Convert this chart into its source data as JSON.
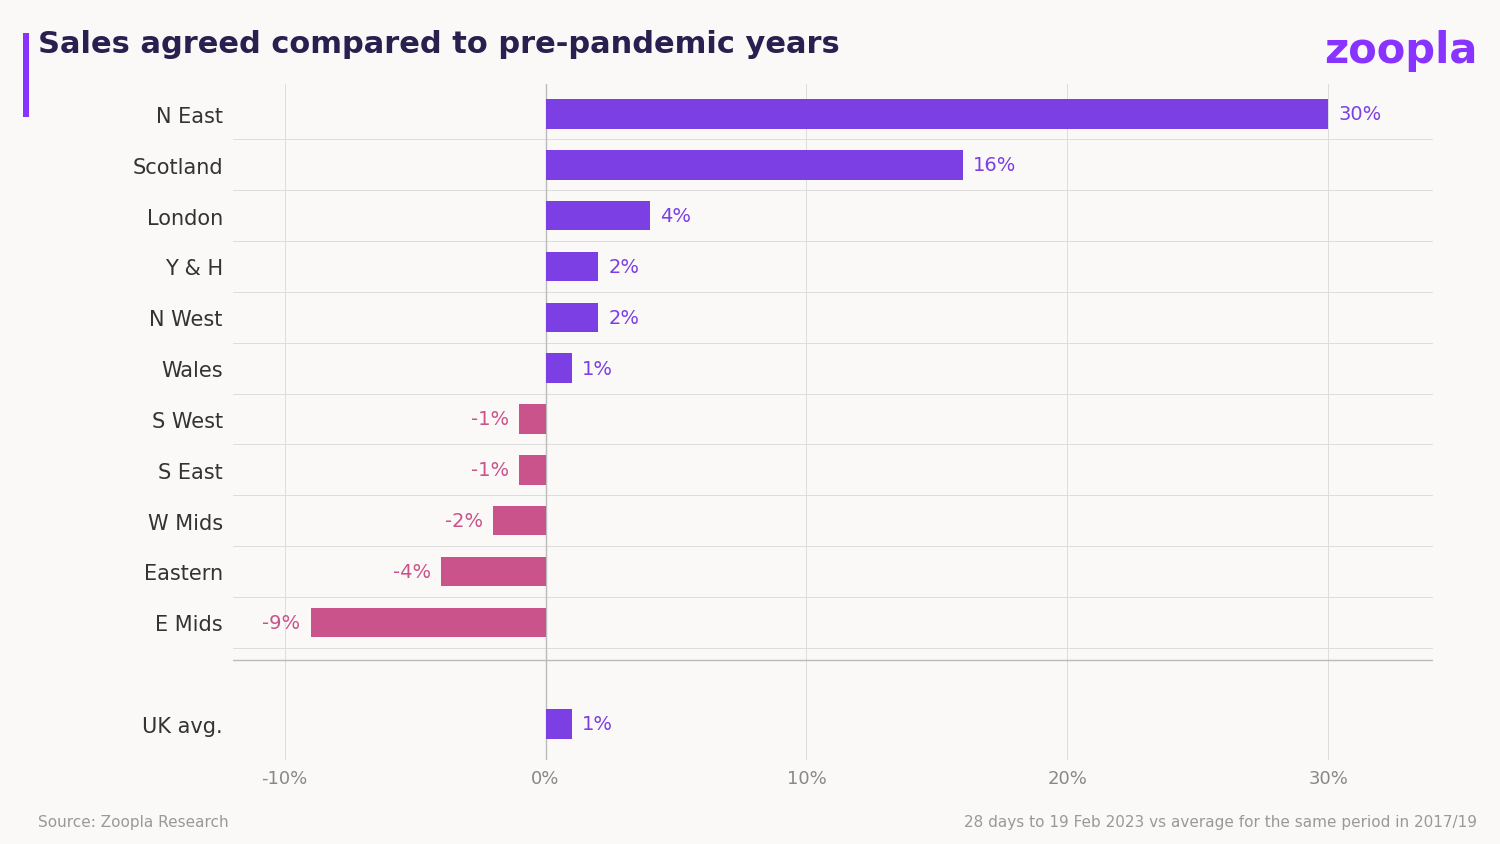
{
  "title": "Sales agreed compared to pre-pandemic years",
  "categories": [
    "N East",
    "Scotland",
    "London",
    "Y & H",
    "N West",
    "Wales",
    "S West",
    "S East",
    "W Mids",
    "Eastern",
    "E Mids"
  ],
  "values": [
    30,
    16,
    4,
    2,
    2,
    1,
    -1,
    -1,
    -2,
    -4,
    -9
  ],
  "uk_avg_label": "UK avg.",
  "uk_avg_value": 1,
  "bar_colors": [
    "#7B3FE4",
    "#7B3FE4",
    "#7B3FE4",
    "#7B3FE4",
    "#7B3FE4",
    "#7B3FE4",
    "#C9538A",
    "#C9538A",
    "#C9538A",
    "#C9538A",
    "#C9538A"
  ],
  "uk_avg_color": "#7B3FE4",
  "xlim": [
    -12,
    34
  ],
  "xticks": [
    -10,
    0,
    10,
    20,
    30
  ],
  "xlabel_labels": [
    "-10%",
    "0%",
    "10%",
    "20%",
    "30%"
  ],
  "background_color": "#FAF9F8",
  "title_fontsize": 22,
  "label_fontsize": 14,
  "tick_fontsize": 13,
  "title_color": "#2A2050",
  "yticklabel_color": "#333333",
  "source_text": "Source: Zoopla Research",
  "footnote_text": "28 days to 19 Feb 2023 vs average for the same period in 2017/19",
  "zoopla_color": "#8833FF",
  "zoopla_label": "zoopla",
  "pos_label_color": "#7B3FE4",
  "neg_label_color": "#C9538A"
}
